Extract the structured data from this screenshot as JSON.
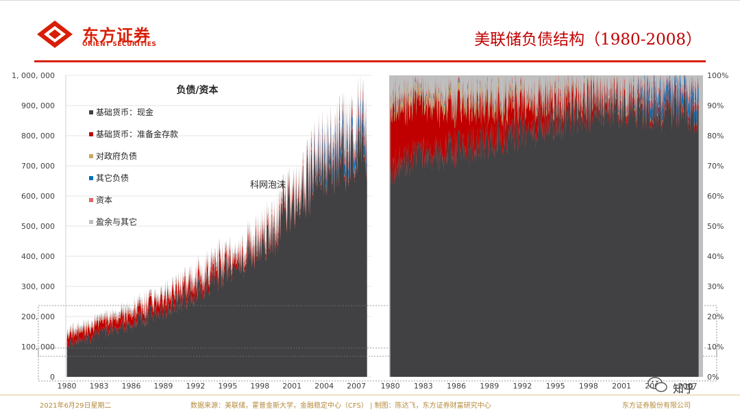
{
  "header": {
    "logo_cn": "东方证券",
    "logo_en": "ORIENT SECURITIES",
    "title": "美联储负债结构（1980-2008）"
  },
  "colors": {
    "brand": "#d81e06",
    "title": "#c00000",
    "footer": "#b58a3c"
  },
  "footer": {
    "date": "2021年6月29日星期二",
    "source": "数据来源：美联储，霍普金斯大学，金融稳定中心（CFS）  |  制图：陈达飞，东方证券财富研究中心",
    "company": "东方证券股份有限公司"
  },
  "watermark": {
    "text": "知乎",
    "icon": "wechat-icon"
  },
  "chart_data": [
    {
      "type": "area",
      "stacked": true,
      "title": "负债/资本",
      "annotations": [
        {
          "text": "科网泡沫",
          "x": 2000.8
        }
      ],
      "xlim": [
        1979.9,
        2008.4
      ],
      "ylim": [
        0,
        1000000
      ],
      "x_ticks": [
        "1980",
        "1983",
        "1986",
        "1989",
        "1992",
        "1995",
        "1998",
        "2001",
        "2004",
        "2007"
      ],
      "y_ticks": [
        "0",
        "100, 000",
        "200, 000",
        "300, 000",
        "400, 000",
        "500, 000",
        "600, 000",
        "700, 000",
        "800, 000",
        "900, 000",
        "1, 000, 000"
      ],
      "legend_position": "top-left",
      "x": [
        1980,
        1982,
        1984,
        1986,
        1988,
        1990,
        1992,
        1994,
        1996,
        1998,
        1999.8,
        2000.1,
        2001,
        2002,
        2003,
        2004,
        2005,
        2006,
        2007,
        2008
      ],
      "series": [
        {
          "name": "基础货币：现金",
          "color": "#414143",
          "values": [
            112000,
            130000,
            155000,
            180000,
            210000,
            245000,
            285000,
            340000,
            380000,
            430000,
            495000,
            555000,
            560000,
            610000,
            655000,
            695000,
            720000,
            745000,
            770000,
            780000
          ]
        },
        {
          "name": "基础货币：准备金存款",
          "color": "#c00000",
          "values": [
            28000,
            28000,
            30000,
            32000,
            34000,
            36000,
            34000,
            26000,
            20000,
            16000,
            18000,
            8000,
            12000,
            12000,
            14000,
            14000,
            14000,
            14000,
            14000,
            15000
          ]
        },
        {
          "name": "对政府负债",
          "color": "#c9a96b",
          "values": [
            4000,
            4000,
            4000,
            4000,
            4000,
            4000,
            4000,
            4000,
            5000,
            5000,
            5000,
            5000,
            5000,
            5000,
            5000,
            5000,
            5000,
            5000,
            5000,
            5000
          ]
        },
        {
          "name": "其它负债",
          "color": "#0070c0",
          "values": [
            0,
            0,
            0,
            0,
            0,
            0,
            0,
            0,
            0,
            0,
            0,
            0,
            0,
            0,
            20000,
            28000,
            30000,
            32000,
            34000,
            36000
          ]
        },
        {
          "name": "资本",
          "color": "#e06666",
          "values": [
            5000,
            5500,
            6000,
            6500,
            7000,
            8000,
            9000,
            10000,
            11000,
            12000,
            14000,
            15000,
            16000,
            17000,
            18000,
            20000,
            22000,
            25000,
            28000,
            30000
          ]
        },
        {
          "name": "盈余与其它",
          "color": "#bfbfbf",
          "values": [
            8000,
            8000,
            9000,
            10000,
            11000,
            12000,
            13000,
            14000,
            15000,
            17000,
            20000,
            18000,
            19000,
            20000,
            21000,
            22000,
            24000,
            25000,
            27000,
            30000
          ]
        }
      ]
    },
    {
      "type": "area",
      "stacked": true,
      "normalized": true,
      "xlim": [
        1979.9,
        2008.4
      ],
      "ylim": [
        0,
        100
      ],
      "x_ticks": [
        "1980",
        "1983",
        "1986",
        "1989",
        "1992",
        "1995",
        "1998",
        "2001",
        "2004",
        "2007"
      ],
      "y_ticks": [
        "0%",
        "10%",
        "20%",
        "30%",
        "40%",
        "50%",
        "60%",
        "70%",
        "80%",
        "90%",
        "100%"
      ],
      "x": [
        1980,
        1982,
        1984,
        1986,
        1988,
        1990,
        1992,
        1994,
        1996,
        1998,
        2000,
        2002,
        2003,
        2004,
        2005,
        2006,
        2007,
        2008
      ],
      "series": [
        {
          "name": "基础货币：现金",
          "values": [
            69,
            73,
            74,
            76,
            78,
            80,
            82,
            84,
            86,
            88,
            90,
            90,
            89,
            89,
            89,
            89,
            89,
            88
          ]
        },
        {
          "name": "基础货币：准备金存款",
          "values": [
            20,
            17,
            16,
            14,
            12,
            10,
            9,
            7,
            5,
            4,
            3,
            2,
            2,
            2,
            2,
            2,
            2,
            2
          ]
        },
        {
          "name": "对政府负债",
          "values": [
            3,
            3,
            3,
            3,
            3,
            3,
            2,
            2,
            2,
            1.5,
            1,
            1,
            1,
            0.5,
            0.5,
            0.5,
            0.5,
            0.5
          ]
        },
        {
          "name": "其它负债",
          "values": [
            0.5,
            0.5,
            0.5,
            0.5,
            0.5,
            0.5,
            0.5,
            0.5,
            0.5,
            0.5,
            0.5,
            0.5,
            3,
            4,
            4,
            4,
            4,
            4.5
          ]
        },
        {
          "name": "资本",
          "values": [
            1,
            1,
            1,
            1,
            1,
            1,
            1.5,
            1.5,
            1.5,
            1.5,
            1.5,
            2,
            2,
            2,
            2,
            2,
            2,
            2
          ]
        },
        {
          "name": "盈余与其它",
          "values": [
            6.5,
            5.5,
            5.5,
            5.5,
            5.5,
            5.5,
            5,
            5,
            5,
            4.5,
            4,
            4.5,
            3,
            2.5,
            2.5,
            2.5,
            2.5,
            3
          ]
        }
      ]
    }
  ]
}
